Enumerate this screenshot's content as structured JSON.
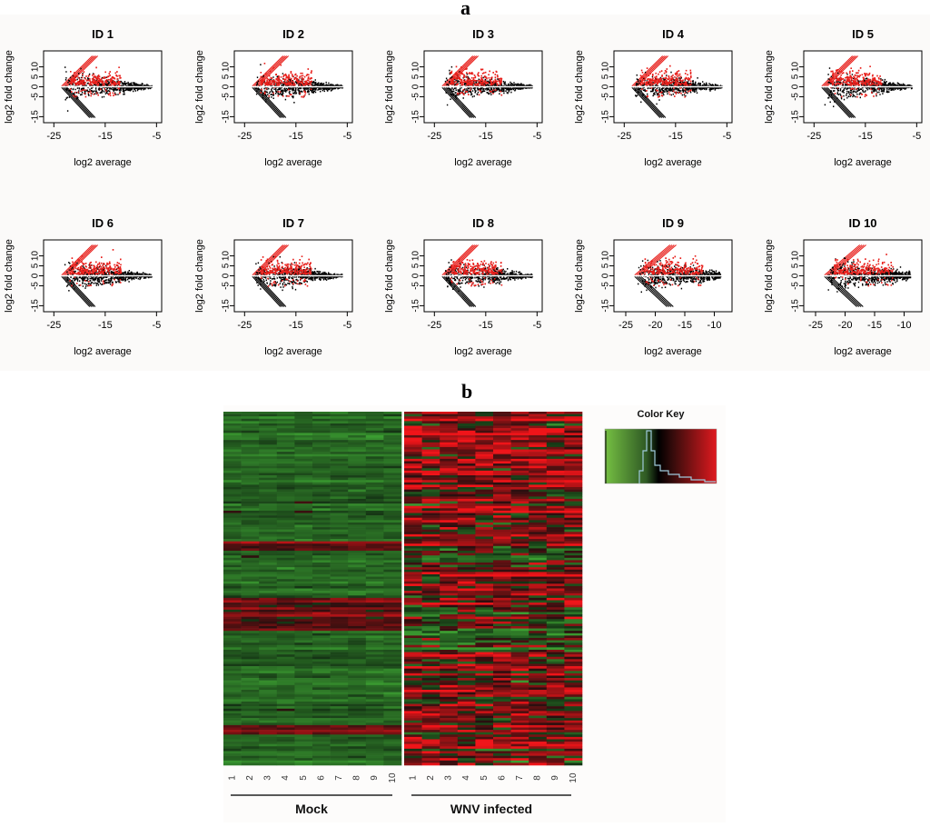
{
  "figure": {
    "panel_a_label": "a",
    "panel_b_label": "b"
  },
  "chart_data": [
    {
      "type": "scatter",
      "panel": "a",
      "description_kind": "MA-plot",
      "xlabel": "log2 average",
      "ylabel": "log2 fold change",
      "ylim": [
        -18,
        18
      ],
      "yticks": [
        -15,
        -5,
        0,
        5,
        10
      ],
      "highlight_color": "#e8201c",
      "base_color": "#000000",
      "subplots": [
        {
          "title": "ID 1",
          "xlim": [
            -27,
            -4
          ],
          "xticks": [
            -25,
            -15,
            -5
          ]
        },
        {
          "title": "ID 2",
          "xlim": [
            -27,
            -4
          ],
          "xticks": [
            -25,
            -15,
            -5
          ]
        },
        {
          "title": "ID 3",
          "xlim": [
            -27,
            -4
          ],
          "xticks": [
            -25,
            -15,
            -5
          ]
        },
        {
          "title": "ID 4",
          "xlim": [
            -27,
            -4
          ],
          "xticks": [
            -25,
            -15,
            -5
          ]
        },
        {
          "title": "ID 5",
          "xlim": [
            -27,
            -4
          ],
          "xticks": [
            -25,
            -15,
            -5
          ]
        },
        {
          "title": "ID 6",
          "xlim": [
            -27,
            -4
          ],
          "xticks": [
            -25,
            -15,
            -5
          ]
        },
        {
          "title": "ID 7",
          "xlim": [
            -27,
            -4
          ],
          "xticks": [
            -25,
            -15,
            -5
          ]
        },
        {
          "title": "ID 8",
          "xlim": [
            -27,
            -4
          ],
          "xticks": [
            -25,
            -15,
            -5
          ]
        },
        {
          "title": "ID 9",
          "xlim": [
            -27,
            -7
          ],
          "xticks": [
            -25,
            -20,
            -15,
            -10
          ]
        },
        {
          "title": "ID 10",
          "xlim": [
            -27,
            -7
          ],
          "xticks": [
            -25,
            -20,
            -15,
            -10
          ]
        }
      ]
    },
    {
      "type": "heatmap",
      "panel": "b",
      "columns": [
        "1",
        "2",
        "3",
        "4",
        "5",
        "6",
        "7",
        "8",
        "9",
        "10",
        "1",
        "2",
        "3",
        "4",
        "5",
        "6",
        "7",
        "8",
        "9",
        "10"
      ],
      "groups": [
        {
          "name": "Mock",
          "columns": 10
        },
        {
          "name": "WNV infected",
          "columns": 10
        }
      ],
      "color_key": {
        "title": "Color Key",
        "colors": [
          "#76c043",
          "#000000",
          "#e01a1f"
        ]
      }
    }
  ]
}
